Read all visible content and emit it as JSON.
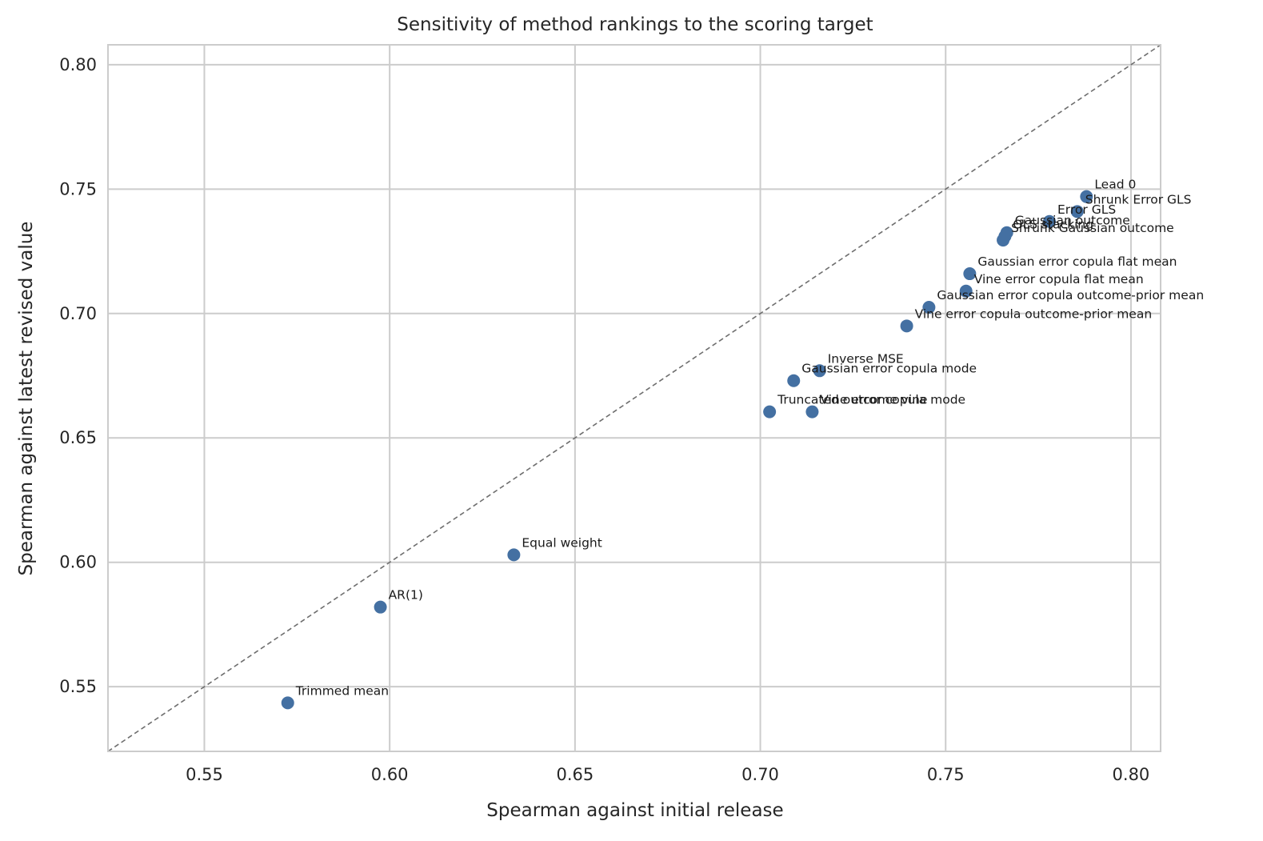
{
  "chart_data": {
    "type": "scatter",
    "title": "Sensitivity of method rankings to the scoring target",
    "xlabel": "Spearman against initial release",
    "ylabel": "Spearman against latest revised value",
    "xlim": [
      0.524,
      0.808
    ],
    "ylim": [
      0.524,
      0.808
    ],
    "xticks": [
      0.55,
      0.6,
      0.65,
      0.7,
      0.75,
      0.8
    ],
    "yticks": [
      0.55,
      0.6,
      0.65,
      0.7,
      0.75,
      0.8
    ],
    "xtick_labels": [
      "0.55",
      "0.60",
      "0.65",
      "0.70",
      "0.75",
      "0.80"
    ],
    "ytick_labels": [
      "0.55",
      "0.60",
      "0.65",
      "0.70",
      "0.75",
      "0.80"
    ],
    "grid": true,
    "reference_line": "y = x",
    "marker_color": "#4470a2",
    "points": [
      {
        "label": "Lead 0",
        "x": 0.788,
        "y": 0.747
      },
      {
        "label": "Shrunk Error GLS",
        "x": 0.7855,
        "y": 0.741
      },
      {
        "label": "Error GLS",
        "x": 0.778,
        "y": 0.737
      },
      {
        "label": "Gaussian outcome",
        "x": 0.7665,
        "y": 0.7325
      },
      {
        "label": "OLS stacking",
        "x": 0.766,
        "y": 0.731
      },
      {
        "label": "Shrunk Gaussian outcome",
        "x": 0.7655,
        "y": 0.7295
      },
      {
        "label": "Gaussian error copula flat mean",
        "x": 0.7565,
        "y": 0.716
      },
      {
        "label": "Vine error copula flat mean",
        "x": 0.7555,
        "y": 0.709
      },
      {
        "label": "Gaussian error copula outcome-prior mean",
        "x": 0.7455,
        "y": 0.7025
      },
      {
        "label": "Vine error copula outcome-prior mean",
        "x": 0.7395,
        "y": 0.695
      },
      {
        "label": "Inverse MSE",
        "x": 0.716,
        "y": 0.677
      },
      {
        "label": "Gaussian error copula mode",
        "x": 0.709,
        "y": 0.673
      },
      {
        "label": "Truncated outcome vine",
        "x": 0.7025,
        "y": 0.6605
      },
      {
        "label": "Vine error copula mode",
        "x": 0.714,
        "y": 0.6605
      },
      {
        "label": "Equal weight",
        "x": 0.6335,
        "y": 0.603
      },
      {
        "label": "AR(1)",
        "x": 0.5975,
        "y": 0.582
      },
      {
        "label": "Trimmed mean",
        "x": 0.5725,
        "y": 0.5435
      }
    ]
  }
}
